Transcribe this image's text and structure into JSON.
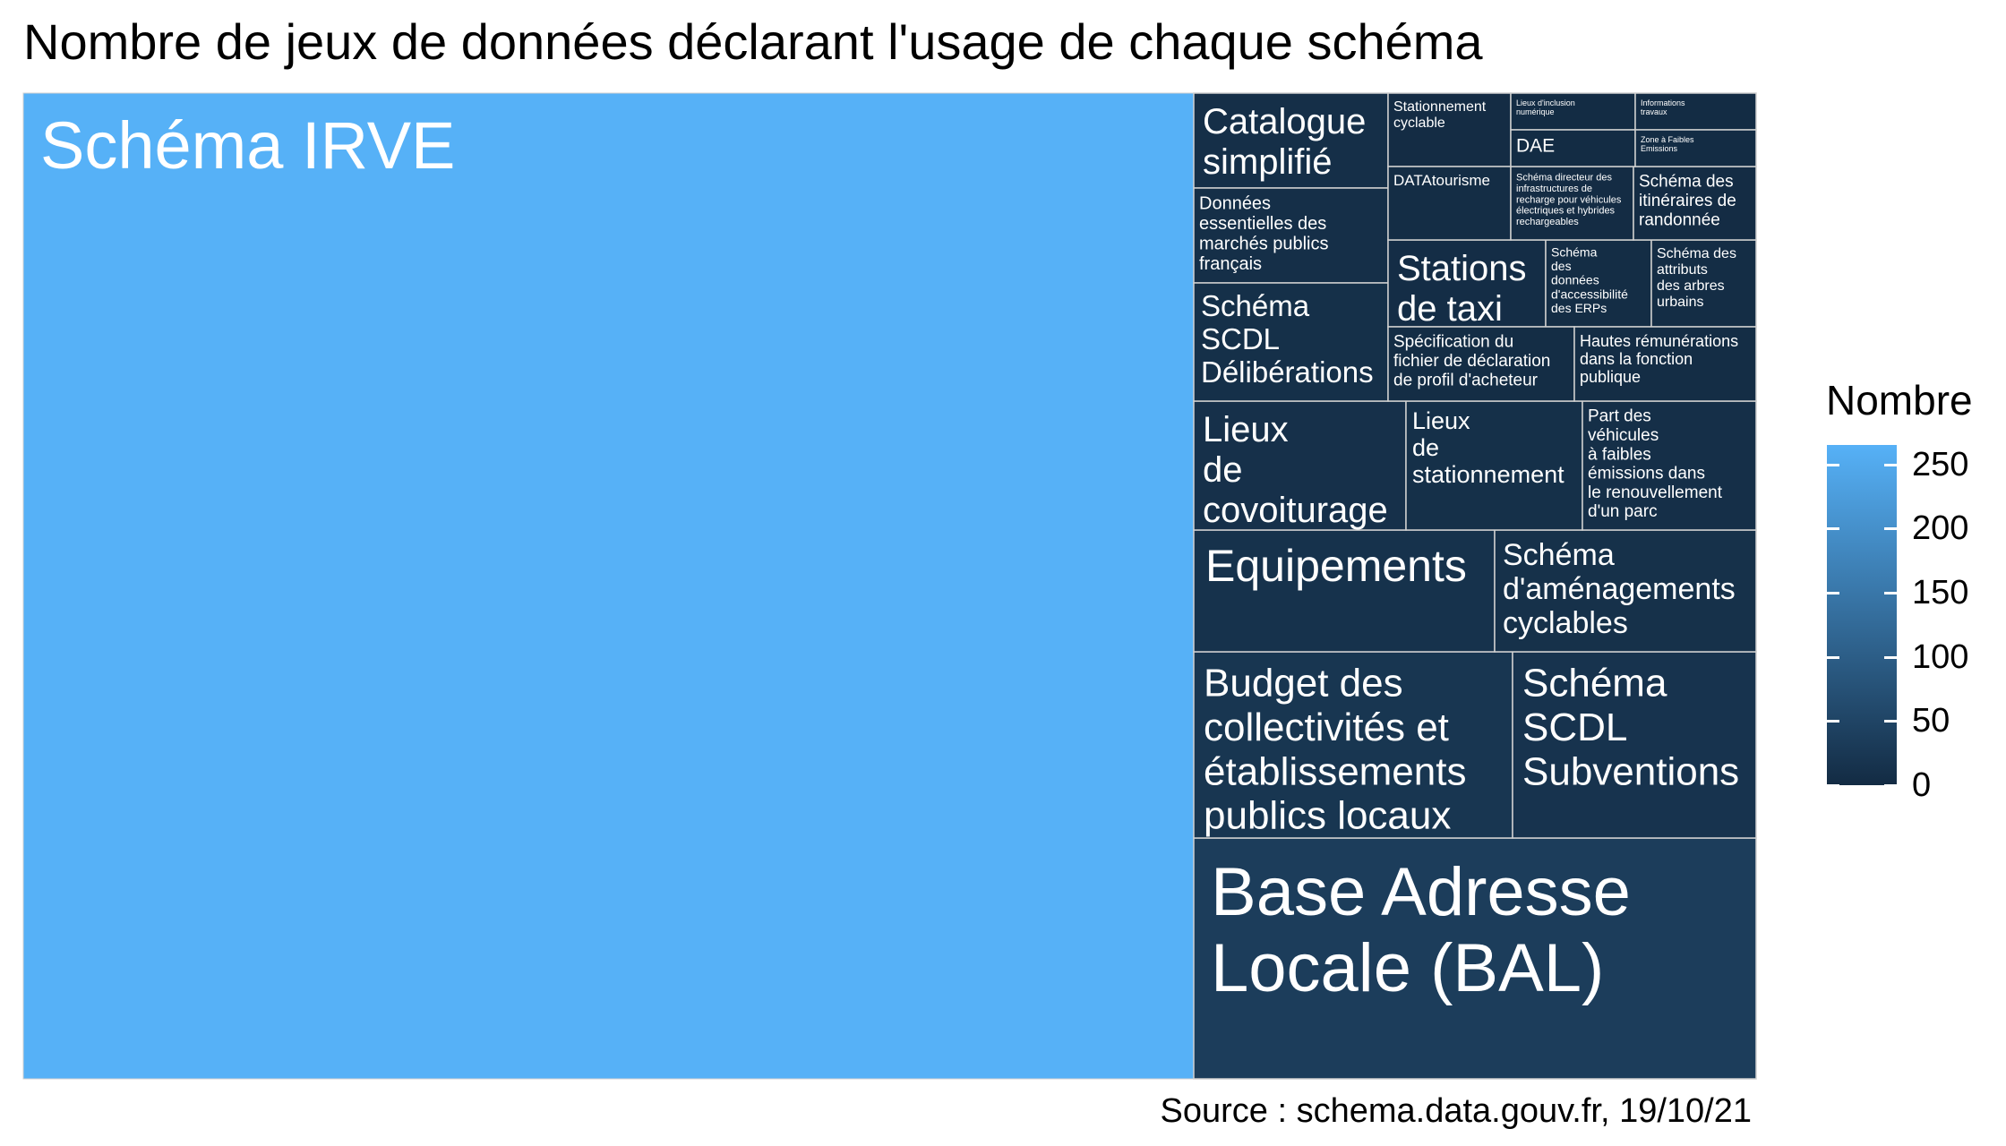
{
  "title": "Nombre de jeux de données déclarant l'usage de chaque schéma",
  "caption": "Source : schema.data.gouv.fr, 19/10/21",
  "legend": {
    "title": "Nombre",
    "ticks": [
      "0",
      "50",
      "100",
      "150",
      "200",
      "250"
    ],
    "colors": {
      "low": "#132b43",
      "high": "#56b1f7"
    }
  },
  "chart_data": {
    "type": "treemap",
    "title": "Nombre de jeux de données déclarant l'usage de chaque schéma",
    "value_range": [
      0,
      265
    ],
    "items": [
      {
        "name": "Schéma IRVE",
        "value": 265
      },
      {
        "name": "Base Adresse Locale (BAL)",
        "value": 36
      },
      {
        "name": "Budget des collectivités et établissements publics locaux",
        "value": 21
      },
      {
        "name": "Schéma SCDL Subventions",
        "value": 16
      },
      {
        "name": "Equipements",
        "value": 13
      },
      {
        "name": "Schéma d'aménagements cyclables",
        "value": 11
      },
      {
        "name": "Lieux de covoiturage",
        "value": 10
      },
      {
        "name": "Lieux de stationnement",
        "value": 9
      },
      {
        "name": "Part des véhicules à faibles émissions dans le renouvellement d'un parc",
        "value": 8
      },
      {
        "name": "Catalogue simplifié",
        "value": 7
      },
      {
        "name": "Données essentielles des marchés publics français",
        "value": 7
      },
      {
        "name": "Schéma SCDL Délibérations",
        "value": 9
      },
      {
        "name": "Stations de taxi",
        "value": 4
      },
      {
        "name": "Schéma des données d'accessibilité des ERPs",
        "value": 3
      },
      {
        "name": "Schéma des attributs des arbres urbains",
        "value": 3
      },
      {
        "name": "Spécification du fichier de déclaration de profil d'acheteur",
        "value": 3
      },
      {
        "name": "Hautes rémunérations dans la fonction publique",
        "value": 3
      },
      {
        "name": "Stationnement cyclable",
        "value": 2
      },
      {
        "name": "DATAtourisme",
        "value": 3
      },
      {
        "name": "Schéma directeur des infrastructures de recharge pour véhicules électriques et hybrides rechargeables",
        "value": 2
      },
      {
        "name": "Schéma des itinéraires de randonnée",
        "value": 2
      },
      {
        "name": "Lieux d'inclusion numérique",
        "value": 1
      },
      {
        "name": "Informations travaux",
        "value": 1
      },
      {
        "name": "DAE",
        "value": 1
      },
      {
        "name": "Zone à Faibles Emissions",
        "value": 1
      }
    ]
  }
}
